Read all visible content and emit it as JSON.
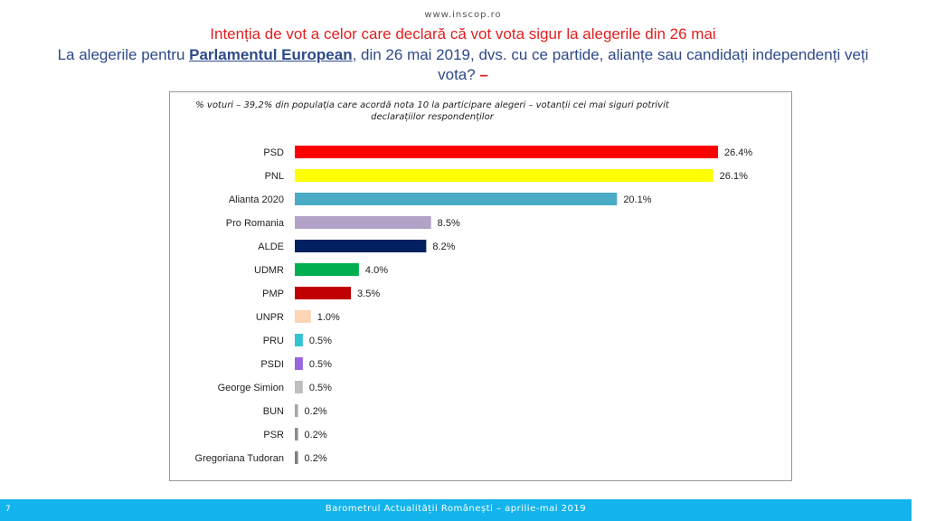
{
  "header": {
    "url": "www.inscop.ro",
    "title": "Intenția de vot a celor care declară că vot vota sigur la alegerile din 26 mai",
    "question_pre": "La alegerile pentru ",
    "question_highlight": "Parlamentul European",
    "question_post": ", din 26 mai 2019, dvs. cu ce partide, alianțe sau candidați independenți veți vota? ",
    "question_dash": "–"
  },
  "footer": {
    "page_number": "7",
    "text": "Barometrul Actualității Românești – aprilie-mai 2019"
  },
  "chart_data": {
    "type": "bar",
    "orientation": "horizontal",
    "subtitle": "% voturi  – 39,2% din populația care acordă nota 10 la participare alegeri – votanții cei mai siguri potrivit declarațiilor respondenților",
    "categories": [
      "PSD",
      "PNL",
      "Alianta 2020",
      "Pro Romania",
      "ALDE",
      "UDMR",
      "PMP",
      "UNPR",
      "PRU",
      "PSDI",
      "George Simion",
      "BUN",
      "PSR",
      "Gregoriana Tudoran"
    ],
    "values": [
      26.4,
      26.1,
      20.1,
      8.5,
      8.2,
      4.0,
      3.5,
      1.0,
      0.5,
      0.5,
      0.5,
      0.2,
      0.2,
      0.2
    ],
    "value_labels": [
      "26.4%",
      "26.1%",
      "20.1%",
      "8.5%",
      "8.2%",
      "4.0%",
      "3.5%",
      "1.0%",
      "0.5%",
      "0.5%",
      "0.5%",
      "0.2%",
      "0.2%",
      "0.2%"
    ],
    "colors": [
      "#ff0000",
      "#ffff00",
      "#4bacc6",
      "#b3a2c7",
      "#002060",
      "#00b050",
      "#c00000",
      "#fbd5b5",
      "#33c3d6",
      "#9966e0",
      "#bfbfbf",
      "#a6a6a6",
      "#8c8c8c",
      "#7f7f7f"
    ],
    "xlim": [
      0,
      26.4
    ],
    "grid": false,
    "legend": "none"
  }
}
